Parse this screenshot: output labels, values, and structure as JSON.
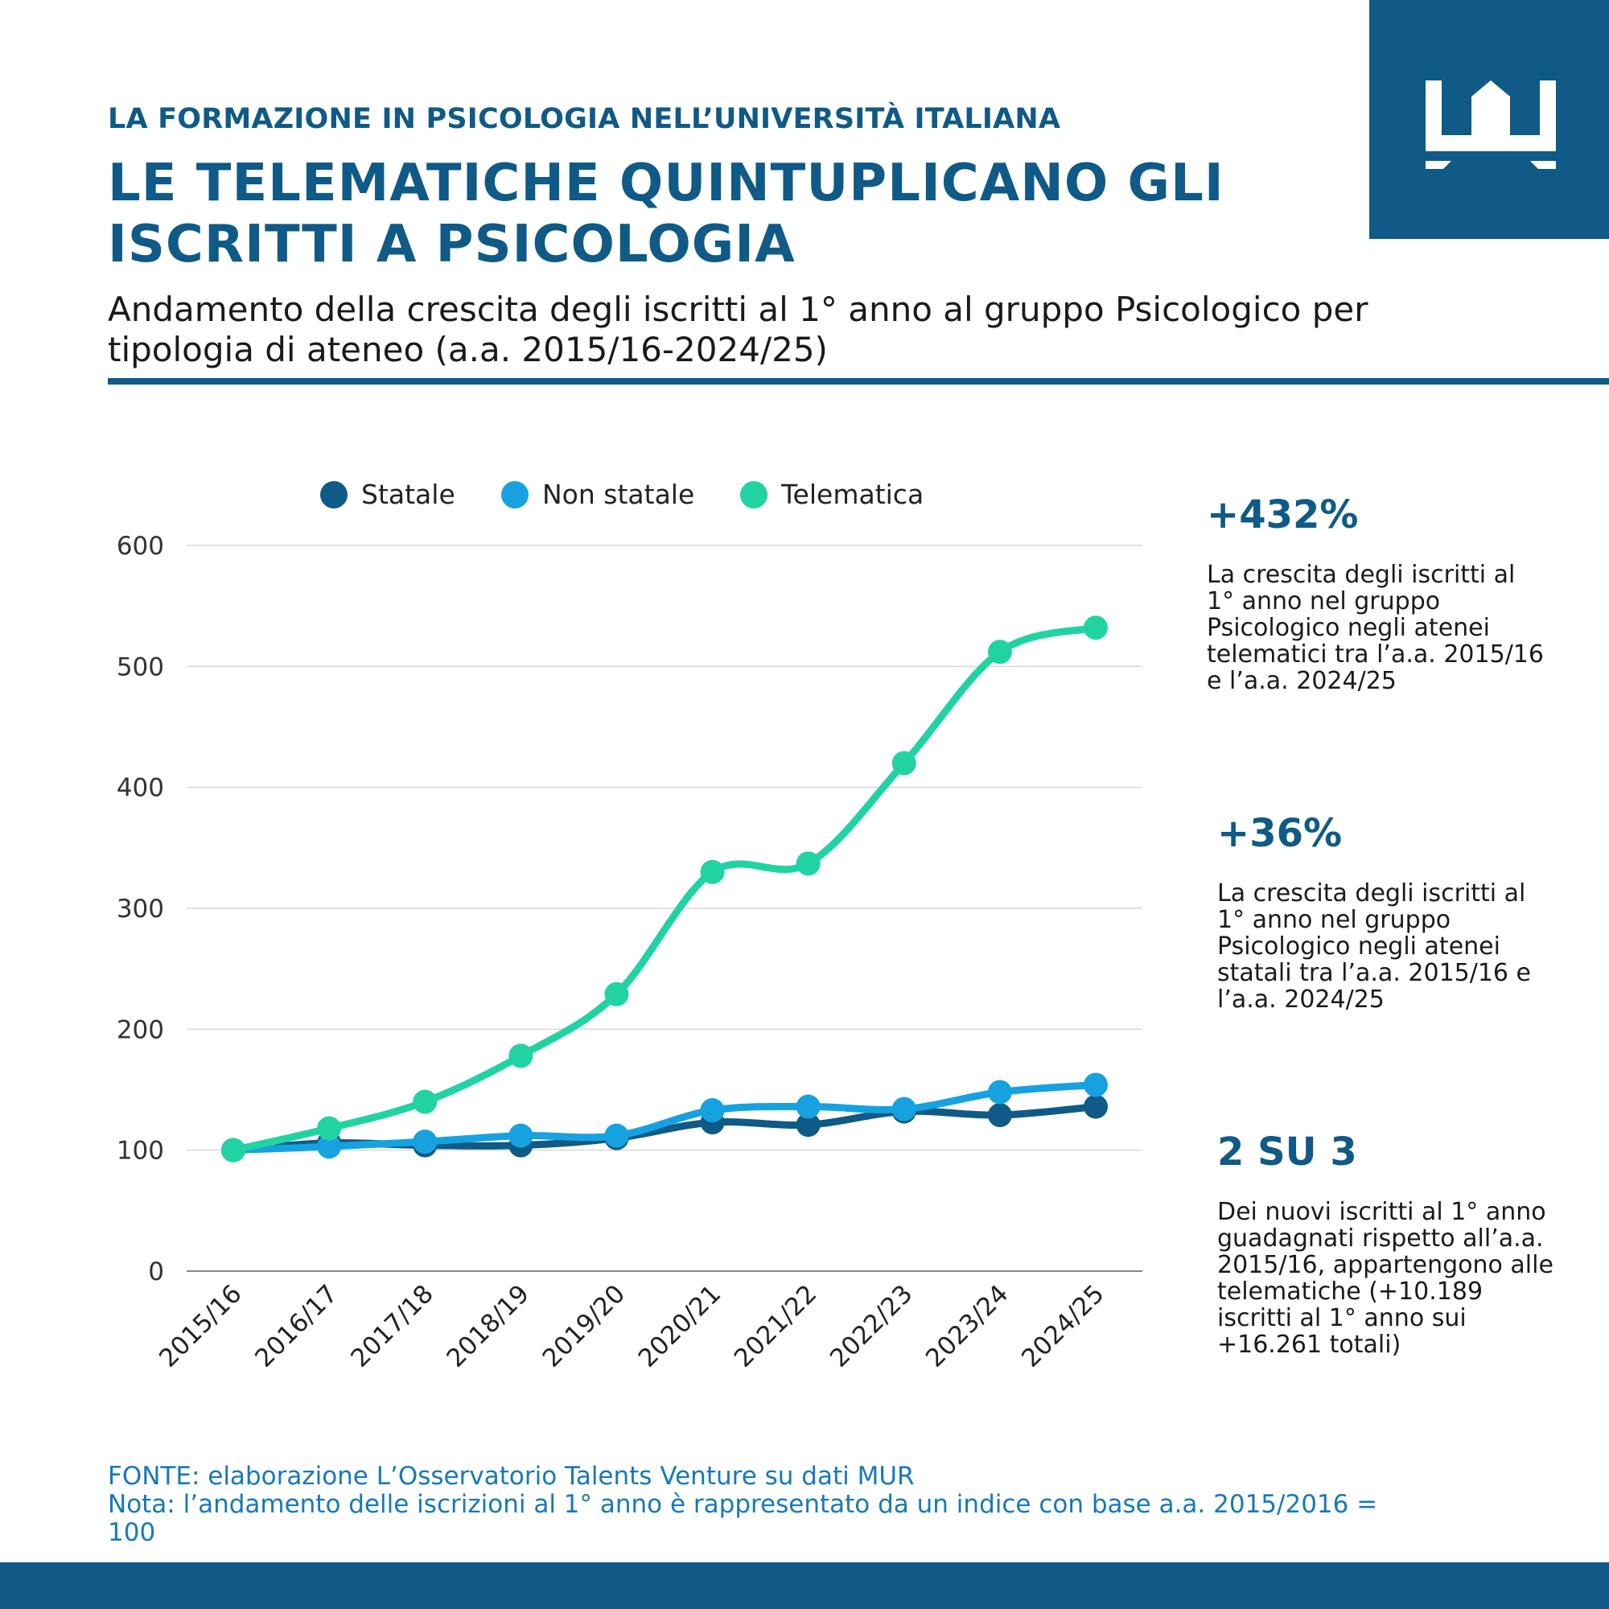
{
  "kicker": "LA FORMAZIONE IN PSICOLOGIA NELL’UNIVERSITÀ ITALIANA",
  "title": "LE TELEMATICHE QUINTUPLICANO GLI ISCRITTI A PSICOLOGIA",
  "subtitle": "Andamento della crescita degli iscritti al 1° anno al gruppo Psicologico per tipologia di ateneo (a.a. 2015/16-2024/25)",
  "colors": {
    "brand": "#0f5a86",
    "statale": "#0f5a86",
    "non_statale": "#16a2e0",
    "telematica": "#21d3a3",
    "grid": "#d9d9d9"
  },
  "chart_data": {
    "type": "line",
    "title": "",
    "xlabel": "",
    "ylabel": "",
    "ylim": [
      0,
      600
    ],
    "yticks": [
      0,
      100,
      200,
      300,
      400,
      500,
      600
    ],
    "grid": true,
    "legend_position": "top",
    "categories": [
      "2015/16",
      "2016/17",
      "2017/18",
      "2018/19",
      "2019/20",
      "2020/21",
      "2021/22",
      "2022/23",
      "2023/24",
      "2024/25"
    ],
    "series": [
      {
        "name": "Statale",
        "color": "#0f5a86",
        "values": [
          100,
          106,
          104,
          104,
          110,
          123,
          121,
          132,
          129,
          136
        ]
      },
      {
        "name": "Non statale",
        "color": "#16a2e0",
        "values": [
          100,
          103,
          107,
          112,
          112,
          133,
          136,
          134,
          148,
          154
        ]
      },
      {
        "name": "Telematica",
        "color": "#21d3a3",
        "values": [
          100,
          118,
          140,
          178,
          229,
          330,
          337,
          420,
          512,
          532
        ]
      }
    ]
  },
  "stats": [
    {
      "value": "+432%",
      "desc": "La crescita degli iscritti al 1° anno nel gruppo Psicologico negli atenei telematici tra l’a.a. 2015/16 e l’a.a. 2024/25"
    },
    {
      "value": "+36%",
      "desc": "La crescita degli iscritti al 1° anno nel gruppo Psicologico negli atenei statali tra l’a.a. 2015/16 e l’a.a. 2024/25"
    },
    {
      "value": "2 SU 3",
      "desc": "Dei nuovi iscritti al 1° anno guadagnati rispetto all’a.a. 2015/16, appartengono alle telematiche (+10.189 iscritti al 1° anno sui +16.261 totali)"
    }
  ],
  "footer": {
    "source": "FONTE: elaborazione L’Osservatorio Talents Venture su dati MUR",
    "note": "Nota: l’andamento delle iscrizioni al 1° anno è rappresentato da un indice con base a.a. 2015/2016 = 100"
  }
}
